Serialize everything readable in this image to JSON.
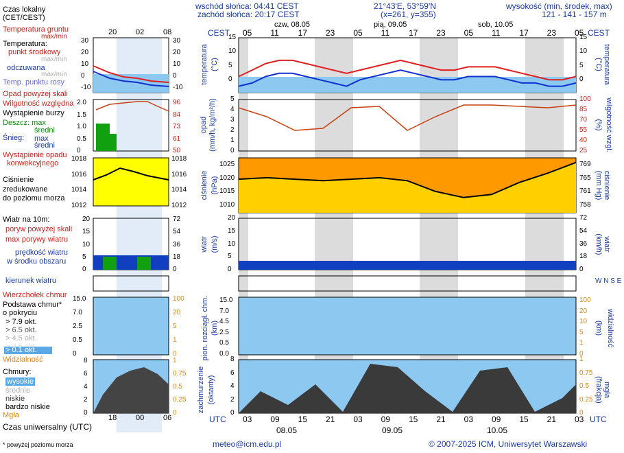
{
  "header": {
    "sunrise": "wschód słońca: 04:41 CEST",
    "sunset": "zachód słońca: 20:17 CEST",
    "coords": "21°43'E, 53°59'N",
    "grid": "(x=261, y=355)",
    "elevation_title": "wysokość (min, środek, max)",
    "elevation_values": "121 - 141 - 157 m"
  },
  "legend": {
    "local_time": "Czas lokalny",
    "local_time_sub": "(CET/CEST)",
    "ground_temp": "Temperatura gruntu",
    "ground_temp_sub": "max/min",
    "temperature": "Temperatura:",
    "center_point": "punkt środkowy",
    "center_sub": "max/min",
    "perceived": "odczuwana",
    "perceived_sub": "max/min",
    "dew_point": "Temp. punktu rosy",
    "precip_over": "Opad powyżej skali",
    "humidity": "Wilgotność względna",
    "storm": "Wystąpienie burzy",
    "rain": "Deszcz: max",
    "rain_mean": "średni",
    "snow": "Śnieg:",
    "snow_max": "max",
    "snow_mean": "średni",
    "conv": "Wystąpienie opadu",
    "conv2": "konwekcyjnego",
    "pressure1": "Ciśnienie",
    "pressure2": "zredukowane",
    "pressure3": "do poziomu morza",
    "wind_title": "Wiatr na 10m:",
    "gust_over": "poryw powyżej skali",
    "gust_max": "max porywy wiatru",
    "wind_speed": "prędkość wiatru",
    "wind_speed2": "w środku obszaru",
    "wind_dir": "kierunek wiatru",
    "cloud_top": "Wierzchołek chmur",
    "cloud_base": "Podstawa chmur*",
    "cloud_base2": "o pokryciu",
    "okt": [
      "> 7.9 okt.",
      "> 6.5 okt.",
      "> 4.5 okt.",
      "> 2.5 okt.",
      "> 0.1 okt."
    ],
    "visibility": "Widzialność",
    "clouds": "Chmury:",
    "cloud_high": "wysokie",
    "cloud_mid": "średnie",
    "cloud_low": "niskie",
    "cloud_vlow": "bardzo niskie",
    "fog": "Mgła",
    "utc": "Czas uniwersalny (UTC)",
    "footnote": "* powyżej poziomu morza"
  },
  "axes": {
    "cest": "CEST",
    "utc": "UTC",
    "local_hours_small": [
      "20",
      "02",
      "08"
    ],
    "utc_hours_small": [
      "18",
      "00",
      "06"
    ],
    "local_hours": [
      "05",
      "11",
      "17",
      "23",
      "05",
      "11",
      "17",
      "23",
      "05",
      "11",
      "17",
      "23",
      "05"
    ],
    "utc_hours": [
      "03",
      "09",
      "15",
      "21",
      "03",
      "09",
      "15",
      "21",
      "03",
      "09",
      "15",
      "21",
      "03"
    ],
    "days_top": [
      "czw, 08.05",
      "pią, 09.05",
      "sob, 10.05"
    ],
    "days_bottom": [
      "08.05",
      "09.05",
      "10.05"
    ],
    "temp_label": "temperatura",
    "temp_unit": "(°C)",
    "precip_label": "opad",
    "precip_unit": "(mm/h, kg/m²/h)",
    "hum_label": "wilgotność wzgl.",
    "hum_unit": "(%)",
    "pres_label": "ciśnienie",
    "pres_unit": "(hPa)",
    "pres_unit_r": "(mm Hg)",
    "wind_label": "wiatr",
    "wind_unit": "(m/s)",
    "wind_unit_r": "(km/h)",
    "cloud_label": "pion. rozciągł. chm.",
    "cloud_unit": "(km)",
    "vis_label": "widzialność",
    "vis_unit": "(km)",
    "cover_label": "zachmurzenie",
    "cover_unit": "(oktanty)",
    "fog_label": "mgła",
    "fog_unit": "(frakcja)",
    "temp_ticks": [
      "15",
      "10",
      "5",
      "0"
    ],
    "precip_ticks": [
      "5",
      "4",
      "3",
      "2",
      "1",
      "0"
    ],
    "hum_ticks": [
      "100",
      "85",
      "70",
      "55",
      "40",
      "25"
    ],
    "pres_ticks": [
      "1025",
      "1020",
      "1015",
      "1010"
    ],
    "mmhg_ticks": [
      "769",
      "765",
      "761",
      "758"
    ],
    "wind_ticks": [
      "20",
      "15",
      "10",
      "5",
      "0"
    ],
    "kmh_ticks": [
      "72",
      "54",
      "36",
      "18",
      "0"
    ],
    "cloud_ticks": [
      "15.0",
      "7.0",
      "4.5",
      "2.5",
      "0.5",
      "0.0"
    ],
    "vis_ticks": [
      "100",
      "20",
      "10",
      "5",
      "1",
      "0"
    ],
    "cover_ticks": [
      "8",
      "6",
      "4",
      "2",
      "0"
    ],
    "fog_ticks": [
      "1",
      "0.75",
      "0.5",
      "0.25",
      "0"
    ],
    "small_temp_ticks": [
      "30",
      "20",
      "10",
      "0",
      "-10"
    ],
    "small_prec_ticks": [
      "2.0",
      "1.5",
      "1.0",
      "0.5",
      "0"
    ],
    "small_hum_ticks": [
      "96",
      "84",
      "73",
      "61",
      "50"
    ],
    "small_pres_ticks": [
      "1018",
      "1016",
      "1014",
      "1012"
    ],
    "small_wind_ticks": [
      "20",
      "15",
      "10",
      "5",
      "0"
    ],
    "small_kmh_ticks": [
      "72",
      "54",
      "36",
      "18",
      "0"
    ],
    "small_cloud_ticks": [
      "15.0",
      "7.0",
      "2.5",
      "0.5",
      "0"
    ],
    "small_vis_ticks": [
      "100",
      "20",
      "5",
      "1",
      "0"
    ],
    "small_cover_ticks": [
      "8",
      "6",
      "4",
      "2",
      "0"
    ],
    "small_fog_ticks": [
      "1",
      "0.75",
      "0.5",
      "0.25",
      "0"
    ],
    "wind_compass": "W N S E"
  },
  "footer": {
    "email": "meteo@icm.edu.pl",
    "copyright": "© 2007-2025 ICM, Uniwersytet Warszawski"
  },
  "colors": {
    "temp_line": "#e02020",
    "perceived_line": "#1030d0",
    "sky": "#8cc8f0",
    "pressure_yellow": "#ffff00",
    "pressure_orange": "#ff9900",
    "wind_blue": "#1040c0",
    "wind_green": "#10a010",
    "night_band": "#d8d8d8"
  },
  "chart_data": [
    {
      "type": "line",
      "title": "temperatura",
      "ylabel": "(°C)",
      "ylim": [
        -2,
        15
      ],
      "x": [
        "05",
        "08",
        "11",
        "14",
        "17",
        "20",
        "23",
        "02",
        "05",
        "08",
        "11",
        "14",
        "17",
        "20",
        "23",
        "02",
        "05",
        "08",
        "11",
        "14",
        "17",
        "20",
        "23",
        "02",
        "05",
        "08"
      ],
      "series": [
        {
          "name": "punkt środkowy",
          "values": [
            3,
            5,
            7,
            8,
            8,
            7,
            6,
            5,
            4,
            5,
            6,
            7,
            8,
            7,
            6,
            5,
            5,
            6,
            6,
            6,
            5,
            4,
            3,
            2,
            2,
            3
          ]
        },
        {
          "name": "odczuwana",
          "values": [
            0,
            1,
            3,
            4,
            4,
            3,
            2,
            1,
            0,
            2,
            3,
            4,
            5,
            4,
            3,
            2,
            2,
            3,
            3,
            3,
            2,
            1,
            1,
            0,
            0,
            1
          ]
        }
      ]
    },
    {
      "type": "line",
      "title": "ciśnienie",
      "ylabel": "(hPa)",
      "ylim": [
        1008,
        1026
      ],
      "x": [
        "05",
        "11",
        "17",
        "23",
        "05",
        "11",
        "17",
        "23",
        "05",
        "11",
        "17",
        "23",
        "05"
      ],
      "values": [
        1019,
        1019.5,
        1019,
        1018.5,
        1019,
        1019.5,
        1018.5,
        1015,
        1013,
        1014,
        1018,
        1021,
        1024.5
      ]
    },
    {
      "type": "line",
      "title": "wilgotność wzgl.",
      "ylabel": "(%)",
      "ylim": [
        25,
        100
      ],
      "x": [
        "05",
        "11",
        "17",
        "23",
        "05",
        "11",
        "17",
        "23",
        "05",
        "11",
        "17",
        "23",
        "05"
      ],
      "values": [
        88,
        75,
        55,
        58,
        88,
        90,
        55,
        75,
        92,
        92,
        90,
        88,
        92
      ]
    }
  ]
}
